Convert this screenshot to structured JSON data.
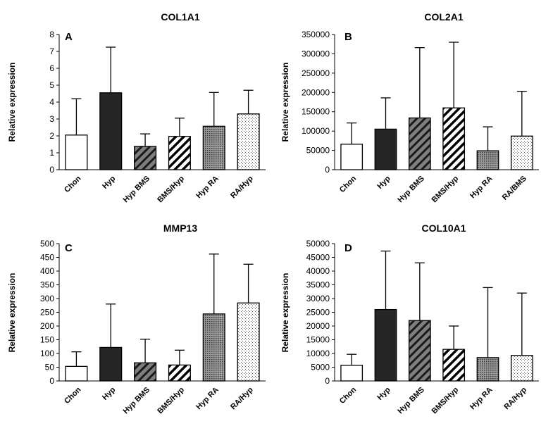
{
  "figure": {
    "panels": [
      {
        "letter": "A",
        "title": "COL1A1"
      },
      {
        "letter": "B",
        "title": "COL2A1"
      },
      {
        "letter": "C",
        "title": "MMP13"
      },
      {
        "letter": "D",
        "title": "COL10A1"
      }
    ],
    "colors": {
      "Chon": "#ffffff",
      "Hyp": "#262626",
      "Hyp BMS": "#7f7f7f",
      "BMS/Hyp": "#ffffff",
      "Hyp RA": "#808080",
      "RA/Hyp": "#ffffff",
      "RA/BMS": "#ffffff",
      "axis": "#000000"
    }
  },
  "chart_data": [
    {
      "type": "bar",
      "panel": "A",
      "title": "COL1A1",
      "ylabel": "Relative expression",
      "xlabel": "",
      "categories": [
        "Chon",
        "Hyp",
        "Hyp BMS",
        "BMS/Hyp",
        "Hyp RA",
        "RA/Hyp"
      ],
      "patterns": [
        "white",
        "dark",
        "diag-gray",
        "diag-white",
        "dots-dense",
        "dots-light"
      ],
      "values": [
        2.05,
        4.55,
        1.38,
        1.97,
        2.57,
        3.3
      ],
      "error_upper": [
        4.2,
        7.25,
        2.12,
        3.05,
        4.57,
        4.7
      ],
      "ylim": [
        0,
        8
      ],
      "yticks": [
        0,
        1,
        2,
        3,
        4,
        5,
        6,
        7,
        8
      ],
      "ytick_labels": [
        "0",
        "1",
        "2",
        "3",
        "4",
        "5",
        "6",
        "7",
        "8"
      ]
    },
    {
      "type": "bar",
      "panel": "B",
      "title": "COL2A1",
      "ylabel": "Relative expression",
      "xlabel": "",
      "categories": [
        "Chon",
        "Hyp",
        "Hyp BMS",
        "BMS/Hyp",
        "Hyp RA",
        "RA/BMS"
      ],
      "patterns": [
        "white",
        "dark",
        "diag-gray",
        "diag-white",
        "dots-dense",
        "dots-light"
      ],
      "values": [
        66000,
        105000,
        134000,
        160000,
        49000,
        87000
      ],
      "error_upper": [
        121000,
        186000,
        316000,
        330000,
        111000,
        203000
      ],
      "ylim": [
        0,
        350000
      ],
      "yticks": [
        0,
        50000,
        100000,
        150000,
        200000,
        250000,
        300000,
        350000
      ],
      "ytick_labels": [
        "0",
        "50000",
        "100000",
        "150000",
        "200000",
        "250000",
        "300000",
        "350000"
      ]
    },
    {
      "type": "bar",
      "panel": "C",
      "title": "MMP13",
      "ylabel": "Relative expression",
      "xlabel": "",
      "categories": [
        "Chon",
        "Hyp",
        "Hyp BMS",
        "BMS/Hyp",
        "Hyp RA",
        "RA/Hyp"
      ],
      "patterns": [
        "white",
        "dark",
        "diag-gray",
        "diag-white",
        "dots-dense",
        "dots-light"
      ],
      "values": [
        53,
        122,
        66,
        58,
        244,
        284
      ],
      "error_upper": [
        106,
        280,
        152,
        112,
        462,
        425
      ],
      "ylim": [
        0,
        500
      ],
      "yticks": [
        0,
        50,
        100,
        150,
        200,
        250,
        300,
        350,
        400,
        450,
        500
      ],
      "ytick_labels": [
        "0",
        "50",
        "100",
        "150",
        "200",
        "250",
        "300",
        "350",
        "400",
        "450",
        "500"
      ]
    },
    {
      "type": "bar",
      "panel": "D",
      "title": "COL10A1",
      "ylabel": "Relative expression",
      "xlabel": "",
      "categories": [
        "Chon",
        "Hyp",
        "Hyp BMS",
        "BMS/Hyp",
        "Hyp RA",
        "RA/Hyp"
      ],
      "patterns": [
        "white",
        "dark",
        "diag-gray",
        "diag-white",
        "dots-dense",
        "dots-light"
      ],
      "values": [
        5700,
        26000,
        22000,
        11500,
        8500,
        9300
      ],
      "error_upper": [
        9700,
        47300,
        43000,
        20000,
        34000,
        32000
      ],
      "ylim": [
        0,
        50000
      ],
      "yticks": [
        0,
        5000,
        10000,
        15000,
        20000,
        25000,
        30000,
        35000,
        40000,
        45000,
        50000
      ],
      "ytick_labels": [
        "0",
        "5000",
        "10000",
        "15000",
        "20000",
        "25000",
        "30000",
        "35000",
        "40000",
        "45000",
        "50000"
      ]
    }
  ]
}
